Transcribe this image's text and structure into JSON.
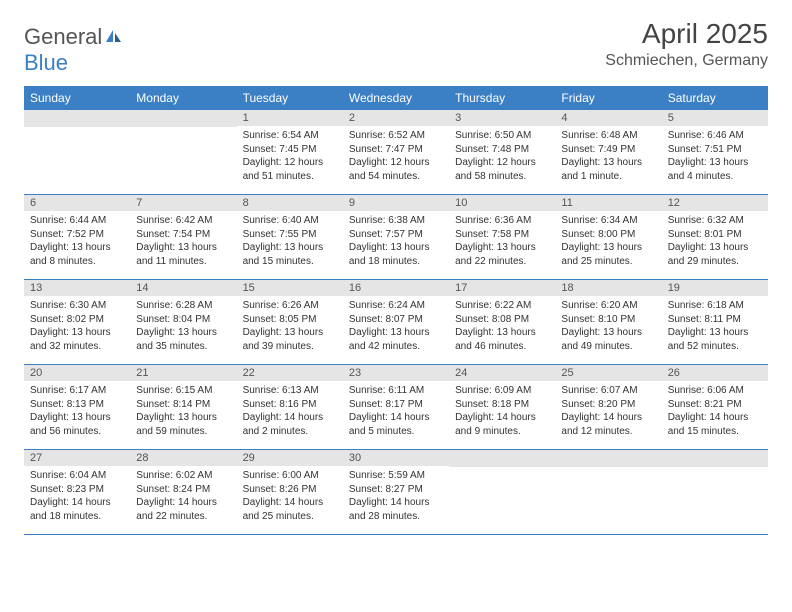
{
  "logo": {
    "part1": "General",
    "part2": "Blue"
  },
  "title": "April 2025",
  "location": "Schmiechen, Germany",
  "colors": {
    "header_bg": "#3b7fc4",
    "header_text": "#ffffff",
    "daynum_bg": "#e5e5e5",
    "divider": "#3b7fc4",
    "body_text": "#333333",
    "page_bg": "#ffffff"
  },
  "typography": {
    "title_fontsize": 28,
    "location_fontsize": 16,
    "header_fontsize": 12,
    "daynum_fontsize": 11,
    "body_fontsize": 10
  },
  "day_labels": [
    "Sunday",
    "Monday",
    "Tuesday",
    "Wednesday",
    "Thursday",
    "Friday",
    "Saturday"
  ],
  "weeks": [
    [
      null,
      null,
      {
        "n": "1",
        "sr": "6:54 AM",
        "ss": "7:45 PM",
        "dl": "12 hours and 51 minutes."
      },
      {
        "n": "2",
        "sr": "6:52 AM",
        "ss": "7:47 PM",
        "dl": "12 hours and 54 minutes."
      },
      {
        "n": "3",
        "sr": "6:50 AM",
        "ss": "7:48 PM",
        "dl": "12 hours and 58 minutes."
      },
      {
        "n": "4",
        "sr": "6:48 AM",
        "ss": "7:49 PM",
        "dl": "13 hours and 1 minute."
      },
      {
        "n": "5",
        "sr": "6:46 AM",
        "ss": "7:51 PM",
        "dl": "13 hours and 4 minutes."
      }
    ],
    [
      {
        "n": "6",
        "sr": "6:44 AM",
        "ss": "7:52 PM",
        "dl": "13 hours and 8 minutes."
      },
      {
        "n": "7",
        "sr": "6:42 AM",
        "ss": "7:54 PM",
        "dl": "13 hours and 11 minutes."
      },
      {
        "n": "8",
        "sr": "6:40 AM",
        "ss": "7:55 PM",
        "dl": "13 hours and 15 minutes."
      },
      {
        "n": "9",
        "sr": "6:38 AM",
        "ss": "7:57 PM",
        "dl": "13 hours and 18 minutes."
      },
      {
        "n": "10",
        "sr": "6:36 AM",
        "ss": "7:58 PM",
        "dl": "13 hours and 22 minutes."
      },
      {
        "n": "11",
        "sr": "6:34 AM",
        "ss": "8:00 PM",
        "dl": "13 hours and 25 minutes."
      },
      {
        "n": "12",
        "sr": "6:32 AM",
        "ss": "8:01 PM",
        "dl": "13 hours and 29 minutes."
      }
    ],
    [
      {
        "n": "13",
        "sr": "6:30 AM",
        "ss": "8:02 PM",
        "dl": "13 hours and 32 minutes."
      },
      {
        "n": "14",
        "sr": "6:28 AM",
        "ss": "8:04 PM",
        "dl": "13 hours and 35 minutes."
      },
      {
        "n": "15",
        "sr": "6:26 AM",
        "ss": "8:05 PM",
        "dl": "13 hours and 39 minutes."
      },
      {
        "n": "16",
        "sr": "6:24 AM",
        "ss": "8:07 PM",
        "dl": "13 hours and 42 minutes."
      },
      {
        "n": "17",
        "sr": "6:22 AM",
        "ss": "8:08 PM",
        "dl": "13 hours and 46 minutes."
      },
      {
        "n": "18",
        "sr": "6:20 AM",
        "ss": "8:10 PM",
        "dl": "13 hours and 49 minutes."
      },
      {
        "n": "19",
        "sr": "6:18 AM",
        "ss": "8:11 PM",
        "dl": "13 hours and 52 minutes."
      }
    ],
    [
      {
        "n": "20",
        "sr": "6:17 AM",
        "ss": "8:13 PM",
        "dl": "13 hours and 56 minutes."
      },
      {
        "n": "21",
        "sr": "6:15 AM",
        "ss": "8:14 PM",
        "dl": "13 hours and 59 minutes."
      },
      {
        "n": "22",
        "sr": "6:13 AM",
        "ss": "8:16 PM",
        "dl": "14 hours and 2 minutes."
      },
      {
        "n": "23",
        "sr": "6:11 AM",
        "ss": "8:17 PM",
        "dl": "14 hours and 5 minutes."
      },
      {
        "n": "24",
        "sr": "6:09 AM",
        "ss": "8:18 PM",
        "dl": "14 hours and 9 minutes."
      },
      {
        "n": "25",
        "sr": "6:07 AM",
        "ss": "8:20 PM",
        "dl": "14 hours and 12 minutes."
      },
      {
        "n": "26",
        "sr": "6:06 AM",
        "ss": "8:21 PM",
        "dl": "14 hours and 15 minutes."
      }
    ],
    [
      {
        "n": "27",
        "sr": "6:04 AM",
        "ss": "8:23 PM",
        "dl": "14 hours and 18 minutes."
      },
      {
        "n": "28",
        "sr": "6:02 AM",
        "ss": "8:24 PM",
        "dl": "14 hours and 22 minutes."
      },
      {
        "n": "29",
        "sr": "6:00 AM",
        "ss": "8:26 PM",
        "dl": "14 hours and 25 minutes."
      },
      {
        "n": "30",
        "sr": "5:59 AM",
        "ss": "8:27 PM",
        "dl": "14 hours and 28 minutes."
      },
      null,
      null,
      null
    ]
  ],
  "labels": {
    "sunrise_prefix": "Sunrise: ",
    "sunset_prefix": "Sunset: ",
    "daylight_prefix": "Daylight: "
  }
}
